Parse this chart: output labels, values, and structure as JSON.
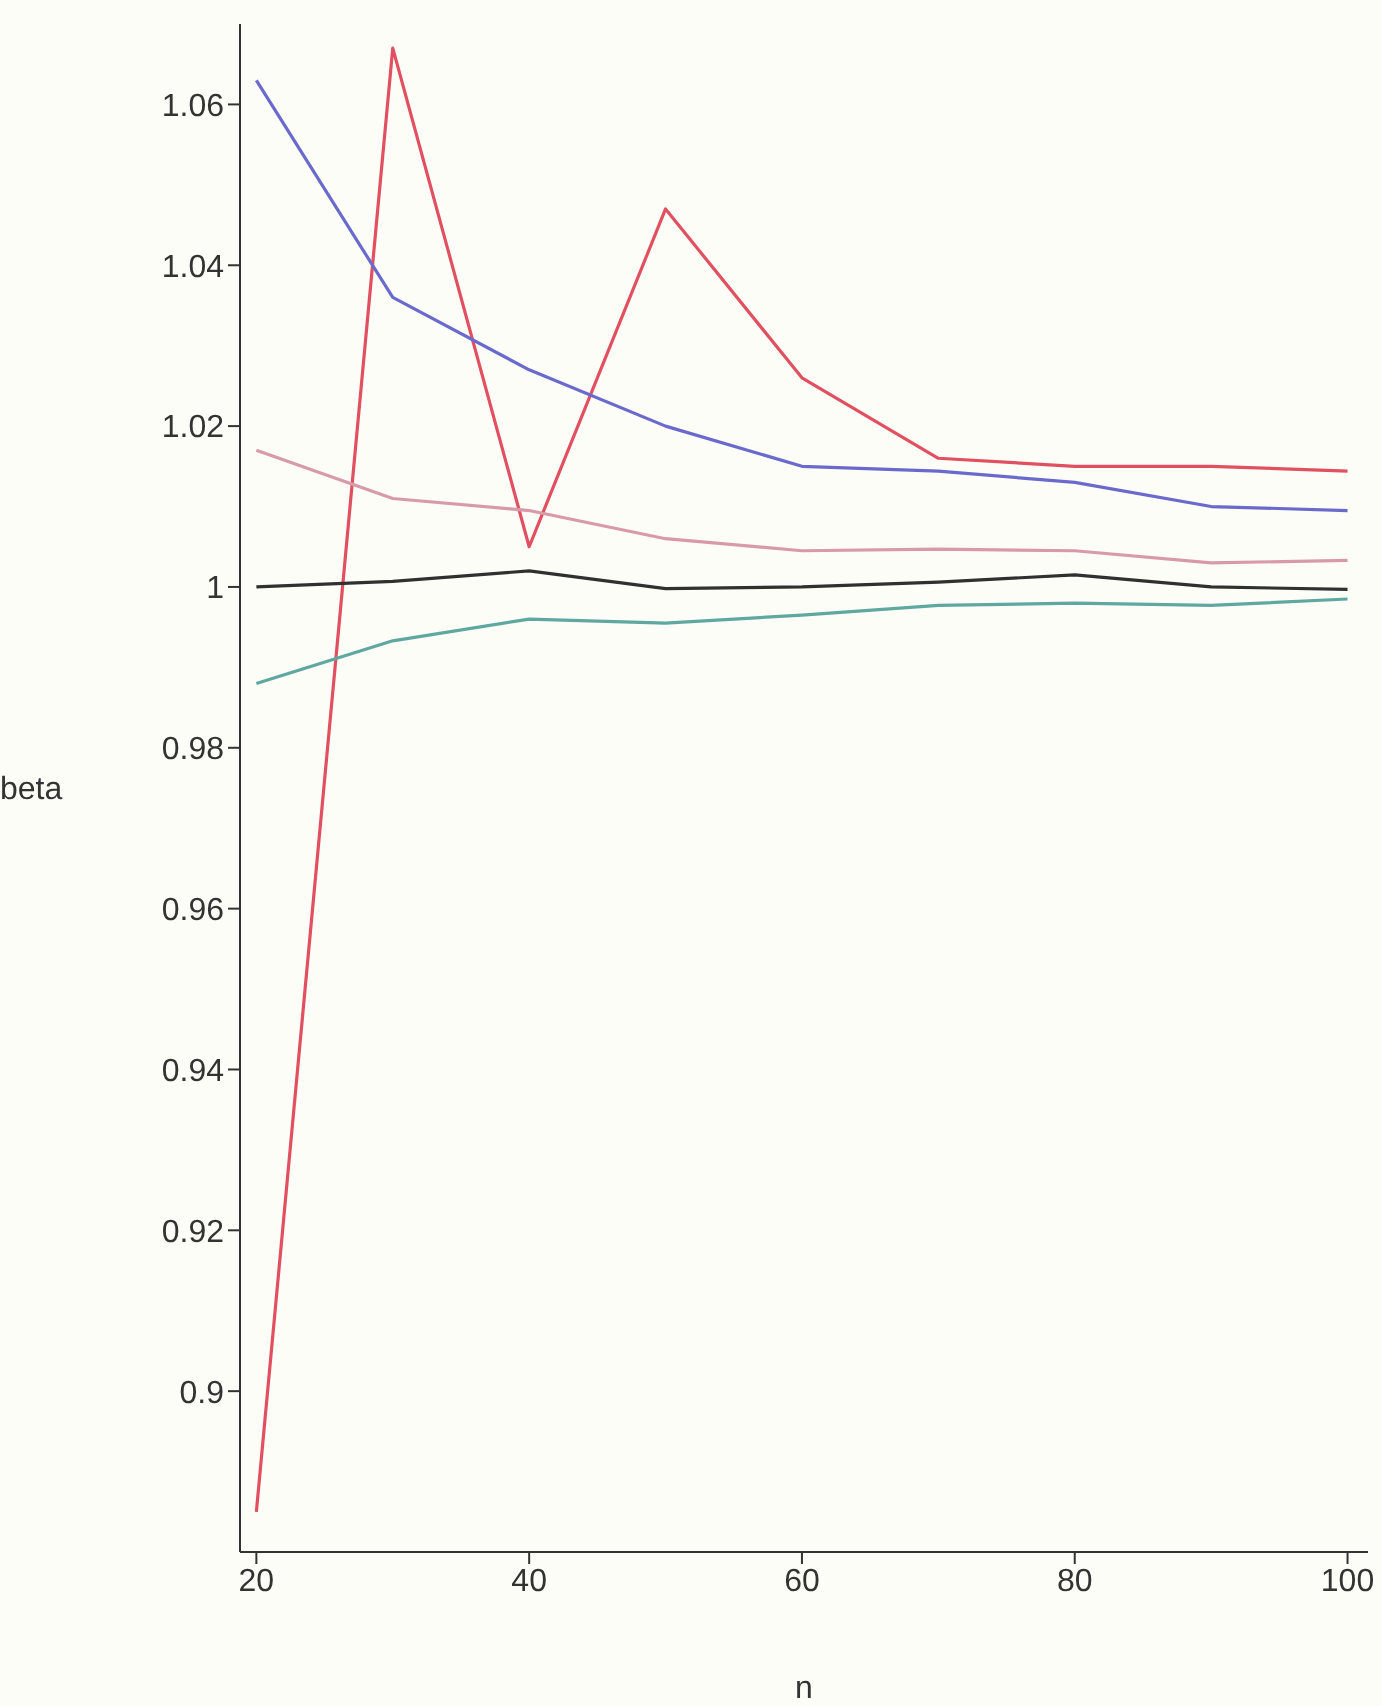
{
  "chart_data": {
    "type": "line",
    "xlabel": "n",
    "ylabel": "beta",
    "x": [
      20,
      30,
      40,
      50,
      60,
      70,
      80,
      90,
      100
    ],
    "xlim": [
      18.8,
      101.5
    ],
    "xticks": [
      20,
      40,
      60,
      80,
      100
    ],
    "ylim": [
      0.88,
      1.07
    ],
    "yticks": [
      0.9,
      0.92,
      0.94,
      0.96,
      0.98,
      1,
      1.02,
      1.04,
      1.06
    ],
    "grid": false,
    "legend": false,
    "marker": "none",
    "line_style": "solid",
    "series": [
      {
        "color": "#e05060",
        "values": [
          0.885,
          1.067,
          1.005,
          1.047,
          1.026,
          1.016,
          1.015,
          1.015,
          1.0144
        ]
      },
      {
        "color": "#6a6acd",
        "values": [
          1.063,
          1.036,
          1.027,
          1.02,
          1.015,
          1.0144,
          1.013,
          1.01,
          1.0095
        ]
      },
      {
        "color": "#d89aa8",
        "values": [
          1.017,
          1.011,
          1.0095,
          1.006,
          1.0045,
          1.0047,
          1.0045,
          1.003,
          1.0033
        ]
      },
      {
        "color": "#303030",
        "values": [
          1,
          1.0007,
          1.002,
          0.9998,
          1,
          1.0006,
          1.0015,
          1,
          0.9997
        ]
      },
      {
        "color": "#5fa8a0",
        "values": [
          0.988,
          0.9933,
          0.996,
          0.9955,
          0.9965,
          0.9977,
          0.998,
          0.9977,
          0.9985
        ]
      }
    ]
  }
}
